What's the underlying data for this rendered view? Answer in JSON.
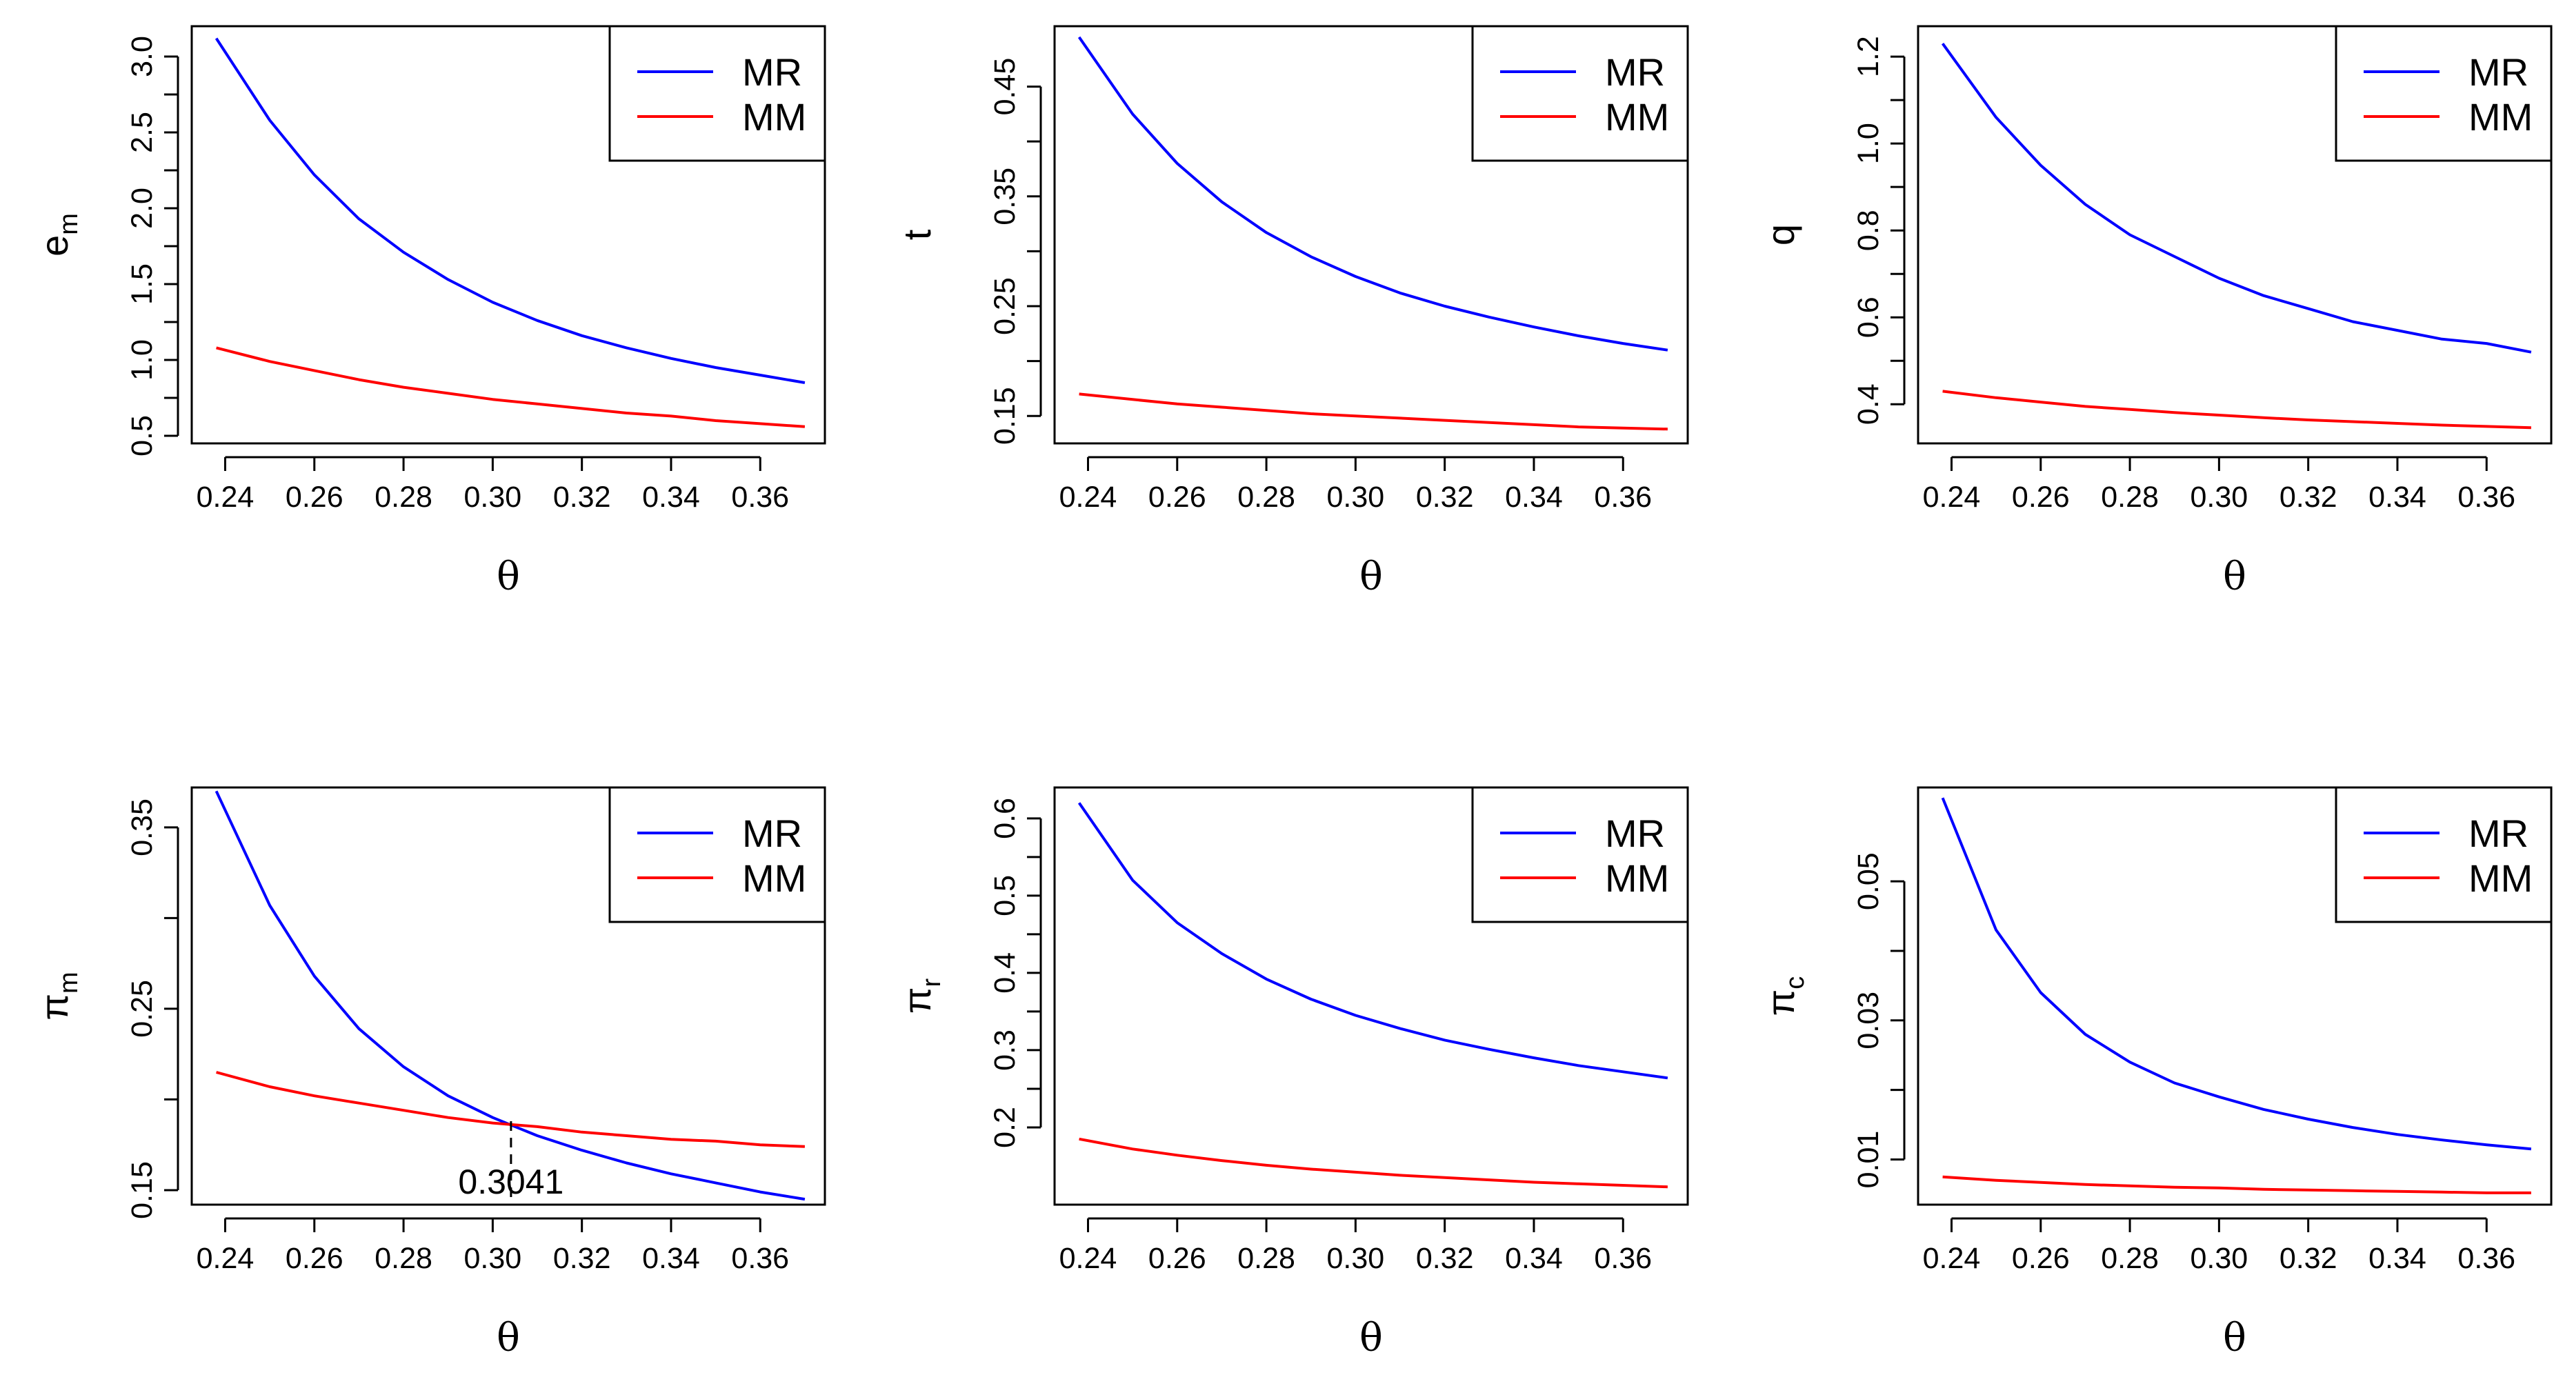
{
  "figure": {
    "layout": "2 rows x 3 columns",
    "x_axis_label": "θ",
    "legend": {
      "position": "top-right",
      "entries": [
        {
          "label": "MR",
          "color": "#0000ff"
        },
        {
          "label": "MM",
          "color": "#ff0000"
        }
      ]
    }
  },
  "chart_data": [
    {
      "type": "line",
      "ylabel_main": "e",
      "ylabel_sub": "m",
      "xlabel": "θ",
      "xlim": [
        0.2325,
        0.3745
      ],
      "ylim": [
        0.45,
        3.2
      ],
      "x_ticks": [
        "0.24",
        "0.26",
        "0.28",
        "0.30",
        "0.32",
        "0.34",
        "0.36"
      ],
      "x_tick_values": [
        0.24,
        0.26,
        0.28,
        0.3,
        0.32,
        0.34,
        0.36
      ],
      "y_ticks": [
        "0.5",
        "1.0",
        "1.5",
        "2.0",
        "2.5",
        "3.0"
      ],
      "y_tick_values": [
        0.5,
        1.0,
        1.5,
        2.0,
        2.5,
        3.0
      ],
      "x": [
        0.238,
        0.25,
        0.26,
        0.27,
        0.28,
        0.29,
        0.3,
        0.31,
        0.32,
        0.33,
        0.34,
        0.35,
        0.36,
        0.37
      ],
      "series": [
        {
          "name": "MR",
          "color": "#0000ff",
          "values": [
            3.12,
            2.58,
            2.22,
            1.93,
            1.71,
            1.53,
            1.38,
            1.26,
            1.16,
            1.08,
            1.01,
            0.95,
            0.9,
            0.85
          ]
        },
        {
          "name": "MM",
          "color": "#ff0000",
          "values": [
            1.08,
            0.99,
            0.93,
            0.87,
            0.82,
            0.78,
            0.74,
            0.71,
            0.68,
            0.65,
            0.63,
            0.6,
            0.58,
            0.56
          ]
        }
      ]
    },
    {
      "type": "line",
      "ylabel_main": "t",
      "ylabel_sub": "",
      "xlabel": "θ",
      "xlim": [
        0.2325,
        0.3745
      ],
      "ylim": [
        0.125,
        0.505
      ],
      "x_ticks": [
        "0.24",
        "0.26",
        "0.28",
        "0.30",
        "0.32",
        "0.34",
        "0.36"
      ],
      "x_tick_values": [
        0.24,
        0.26,
        0.28,
        0.3,
        0.32,
        0.34,
        0.36
      ],
      "y_ticks": [
        "0.15",
        "0.25",
        "0.35",
        "0.45"
      ],
      "y_tick_values": [
        0.15,
        0.25,
        0.35,
        0.45
      ],
      "x": [
        0.238,
        0.25,
        0.26,
        0.27,
        0.28,
        0.29,
        0.3,
        0.31,
        0.32,
        0.33,
        0.34,
        0.35,
        0.36,
        0.37
      ],
      "series": [
        {
          "name": "MR",
          "color": "#0000ff",
          "values": [
            0.495,
            0.425,
            0.38,
            0.345,
            0.317,
            0.295,
            0.277,
            0.262,
            0.25,
            0.24,
            0.231,
            0.223,
            0.216,
            0.21
          ]
        },
        {
          "name": "MM",
          "color": "#ff0000",
          "values": [
            0.17,
            0.165,
            0.161,
            0.158,
            0.155,
            0.152,
            0.15,
            0.148,
            0.146,
            0.144,
            0.142,
            0.14,
            0.139,
            0.138
          ]
        }
      ]
    },
    {
      "type": "line",
      "ylabel_main": "q",
      "ylabel_sub": "",
      "xlabel": "θ",
      "xlim": [
        0.2325,
        0.3745
      ],
      "ylim": [
        0.31,
        1.27
      ],
      "x_ticks": [
        "0.24",
        "0.26",
        "0.28",
        "0.30",
        "0.32",
        "0.34",
        "0.36"
      ],
      "x_tick_values": [
        0.24,
        0.26,
        0.28,
        0.3,
        0.32,
        0.34,
        0.36
      ],
      "y_ticks": [
        "0.4",
        "0.6",
        "0.8",
        "1.0",
        "1.2"
      ],
      "y_tick_values": [
        0.4,
        0.6,
        0.8,
        1.0,
        1.2
      ],
      "x": [
        0.238,
        0.25,
        0.26,
        0.27,
        0.28,
        0.29,
        0.3,
        0.31,
        0.32,
        0.33,
        0.34,
        0.35,
        0.36,
        0.37
      ],
      "series": [
        {
          "name": "MR",
          "color": "#0000ff",
          "values": [
            1.23,
            1.06,
            0.95,
            0.86,
            0.79,
            0.74,
            0.69,
            0.65,
            0.62,
            0.59,
            0.57,
            0.55,
            0.54,
            0.52
          ]
        },
        {
          "name": "MM",
          "color": "#ff0000",
          "values": [
            0.43,
            0.415,
            0.405,
            0.395,
            0.388,
            0.381,
            0.375,
            0.369,
            0.364,
            0.36,
            0.356,
            0.352,
            0.349,
            0.346
          ]
        }
      ]
    },
    {
      "type": "line",
      "ylabel_main": "π",
      "ylabel_sub": "m",
      "xlabel": "θ",
      "xlim": [
        0.2325,
        0.3745
      ],
      "ylim": [
        0.142,
        0.372
      ],
      "x_ticks": [
        "0.24",
        "0.26",
        "0.28",
        "0.30",
        "0.32",
        "0.34",
        "0.36"
      ],
      "x_tick_values": [
        0.24,
        0.26,
        0.28,
        0.3,
        0.32,
        0.34,
        0.36
      ],
      "y_ticks": [
        "0.15",
        "0.25",
        "0.35"
      ],
      "y_tick_values": [
        0.15,
        0.25,
        0.35
      ],
      "x": [
        0.238,
        0.25,
        0.26,
        0.27,
        0.28,
        0.29,
        0.3,
        0.31,
        0.32,
        0.33,
        0.34,
        0.35,
        0.36,
        0.37
      ],
      "series": [
        {
          "name": "MR",
          "color": "#0000ff",
          "values": [
            0.37,
            0.307,
            0.268,
            0.239,
            0.218,
            0.202,
            0.19,
            0.18,
            0.172,
            0.165,
            0.159,
            0.154,
            0.149,
            0.145
          ]
        },
        {
          "name": "MM",
          "color": "#ff0000",
          "values": [
            0.215,
            0.207,
            0.202,
            0.198,
            0.194,
            0.19,
            0.187,
            0.185,
            0.182,
            0.18,
            0.178,
            0.177,
            0.175,
            0.174
          ]
        }
      ],
      "annotation": {
        "text": "0.3041",
        "x": 0.3041,
        "y": 0.188
      }
    },
    {
      "type": "line",
      "ylabel_main": "π",
      "ylabel_sub": "r",
      "xlabel": "θ",
      "xlim": [
        0.2325,
        0.3745
      ],
      "ylim": [
        0.1,
        0.64
      ],
      "x_ticks": [
        "0.24",
        "0.26",
        "0.28",
        "0.30",
        "0.32",
        "0.34",
        "0.36"
      ],
      "x_tick_values": [
        0.24,
        0.26,
        0.28,
        0.3,
        0.32,
        0.34,
        0.36
      ],
      "y_ticks": [
        "0.2",
        "0.3",
        "0.4",
        "0.5",
        "0.6"
      ],
      "y_tick_values": [
        0.2,
        0.3,
        0.4,
        0.5,
        0.6
      ],
      "x": [
        0.238,
        0.25,
        0.26,
        0.27,
        0.28,
        0.29,
        0.3,
        0.31,
        0.32,
        0.33,
        0.34,
        0.35,
        0.36,
        0.37
      ],
      "series": [
        {
          "name": "MR",
          "color": "#0000ff",
          "values": [
            0.62,
            0.52,
            0.465,
            0.425,
            0.392,
            0.366,
            0.345,
            0.328,
            0.313,
            0.301,
            0.29,
            0.28,
            0.272,
            0.264
          ]
        },
        {
          "name": "MM",
          "color": "#ff0000",
          "values": [
            0.185,
            0.172,
            0.164,
            0.157,
            0.151,
            0.146,
            0.142,
            0.138,
            0.135,
            0.132,
            0.129,
            0.127,
            0.125,
            0.123
          ]
        }
      ]
    },
    {
      "type": "line",
      "ylabel_main": "π",
      "ylabel_sub": "c",
      "xlabel": "θ",
      "xlim": [
        0.2325,
        0.3745
      ],
      "ylim": [
        0.0035,
        0.0635
      ],
      "x_ticks": [
        "0.24",
        "0.26",
        "0.28",
        "0.30",
        "0.32",
        "0.34",
        "0.36"
      ],
      "x_tick_values": [
        0.24,
        0.26,
        0.28,
        0.3,
        0.32,
        0.34,
        0.36
      ],
      "y_ticks": [
        "0.01",
        "0.03",
        "0.05"
      ],
      "y_tick_values": [
        0.01,
        0.03,
        0.05
      ],
      "x": [
        0.238,
        0.25,
        0.26,
        0.27,
        0.28,
        0.29,
        0.3,
        0.31,
        0.32,
        0.33,
        0.34,
        0.35,
        0.36,
        0.37
      ],
      "series": [
        {
          "name": "MR",
          "color": "#0000ff",
          "values": [
            0.062,
            0.043,
            0.034,
            0.028,
            0.024,
            0.021,
            0.019,
            0.0172,
            0.0158,
            0.0146,
            0.0136,
            0.0128,
            0.0121,
            0.0115
          ]
        },
        {
          "name": "MM",
          "color": "#ff0000",
          "values": [
            0.0075,
            0.007,
            0.0067,
            0.0064,
            0.0062,
            0.006,
            0.0059,
            0.0057,
            0.0056,
            0.0055,
            0.0054,
            0.0053,
            0.0052,
            0.0052
          ]
        }
      ]
    }
  ]
}
